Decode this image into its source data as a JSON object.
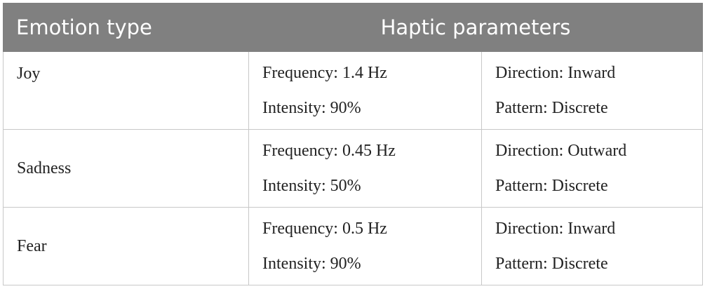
{
  "table": {
    "header": [
      "Emotion type",
      "Haptic parameters"
    ],
    "rows": [
      [
        "Joy",
        "Frequency: 1.4 Hz",
        "Intensity: 90%",
        "Direction: Inward",
        "Pattern: Discrete"
      ],
      [
        "Sadness",
        "Frequency: 0.45 Hz",
        "Intensity: 50%",
        "Direction: Outward",
        "Pattern: Discrete"
      ],
      [
        "Fear",
        "Frequency: 0.5 Hz",
        "Intensity: 90%",
        "Direction: Inward",
        "Pattern: Discrete"
      ]
    ]
  }
}
